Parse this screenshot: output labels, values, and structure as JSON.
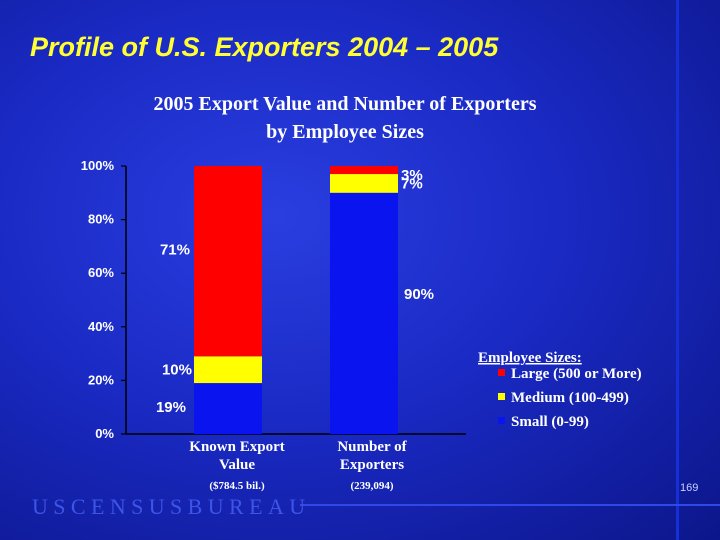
{
  "slide": {
    "title": "Profile of U.S. Exporters 2004 – 2005",
    "footer_brand": "USCENSUSBUREAU",
    "page_number": "169"
  },
  "chart_data": {
    "type": "bar",
    "stacked": true,
    "title": "2005 Export Value and Number of Exporters",
    "subtitle": "by Employee Sizes",
    "categories": [
      "Known Export Value",
      "Number of Exporters"
    ],
    "category_labels": [
      {
        "line1": "Known Export",
        "line2": "Value",
        "note": "($784.5 bil.)"
      },
      {
        "line1": "Number of",
        "line2": "Exporters",
        "note": "(239,094)"
      }
    ],
    "series": [
      {
        "name": "Small (0-99)",
        "color": "#0a14ee",
        "values": [
          19,
          90
        ]
      },
      {
        "name": "Medium (100-499)",
        "color": "#ffff00",
        "values": [
          10,
          7
        ]
      },
      {
        "name": "Large (500 or More)",
        "color": "#ff0000",
        "values": [
          71,
          3
        ]
      }
    ],
    "ylim": [
      0,
      100
    ],
    "yticks": [
      "0%",
      "20%",
      "40%",
      "60%",
      "80%",
      "100%"
    ],
    "data_labels": [
      [
        "19%",
        "10%",
        "71%"
      ],
      [
        "90%",
        "7%",
        "3%"
      ]
    ],
    "legend": {
      "title": "Employee Sizes:",
      "placement": "right"
    },
    "grid": false
  }
}
